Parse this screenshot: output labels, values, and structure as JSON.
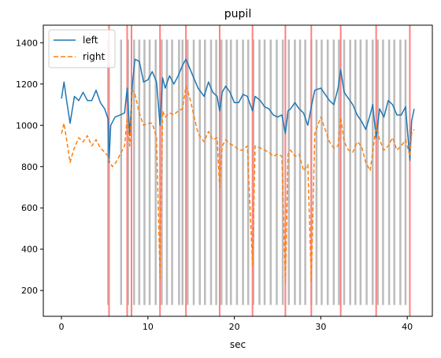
{
  "chart_data": {
    "type": "line",
    "title": "pupil",
    "xlabel": "sec",
    "ylabel": "",
    "xlim": [
      -2.1,
      42.9
    ],
    "ylim": [
      75,
      1485
    ],
    "xticks": [
      0,
      10,
      20,
      30,
      40
    ],
    "yticks": [
      200,
      400,
      600,
      800,
      1000,
      1200,
      1400
    ],
    "legend_position": "top-left",
    "blink_markers": {
      "color": "#bbbbbb",
      "y_range": [
        130,
        1415
      ],
      "x": [
        5.4,
        6.9,
        7.7,
        8.4,
        9.0,
        9.6,
        10.2,
        10.9,
        11.6,
        12.2,
        12.8,
        13.6,
        14.0,
        14.6,
        15.3,
        16.0,
        16.6,
        17.3,
        17.9,
        18.5,
        19.1,
        19.6,
        20.3,
        21.0,
        21.6,
        22.2,
        22.9,
        23.5,
        24.2,
        24.9,
        25.6,
        26.3,
        27.0,
        27.6,
        28.2,
        28.9,
        29.5,
        30.1,
        30.8,
        31.5,
        32.1,
        32.7,
        33.4,
        34.0,
        34.6,
        35.3,
        36.0,
        36.6,
        37.2,
        37.9,
        38.5,
        39.2,
        39.8
      ]
    },
    "event_lines": {
      "color": "#ff8080",
      "x": [
        5.5,
        7.6,
        8.1,
        11.4,
        14.4,
        18.3,
        22.1,
        25.9,
        28.9,
        32.3,
        36.4,
        40.3
      ]
    },
    "series": [
      {
        "name": "left",
        "color": "#1f77b4",
        "style": "solid",
        "x": [
          0.0,
          0.3,
          0.6,
          1.0,
          1.5,
          2.0,
          2.5,
          3.0,
          3.5,
          4.0,
          4.5,
          5.0,
          5.4,
          5.5,
          5.7,
          6.2,
          6.8,
          7.3,
          7.6,
          7.9,
          8.2,
          8.5,
          9.0,
          9.5,
          10.0,
          10.5,
          11.0,
          11.4,
          11.7,
          12.0,
          12.5,
          13.0,
          13.5,
          14.0,
          14.4,
          14.8,
          15.3,
          15.8,
          16.5,
          17.0,
          17.5,
          18.0,
          18.3,
          18.6,
          19.0,
          19.5,
          20.0,
          20.5,
          21.0,
          21.5,
          22.1,
          22.4,
          23.0,
          23.5,
          24.0,
          24.5,
          25.0,
          25.5,
          25.9,
          26.2,
          26.5,
          27.0,
          27.5,
          28.0,
          28.5,
          28.9,
          29.3,
          30.0,
          30.5,
          31.0,
          31.5,
          32.0,
          32.3,
          32.7,
          33.2,
          33.7,
          34.2,
          34.7,
          35.2,
          35.7,
          36.0,
          36.4,
          36.8,
          37.3,
          37.8,
          38.3,
          38.8,
          39.3,
          39.8,
          40.3,
          40.5,
          40.8
        ],
        "values": [
          1130,
          1210,
          1120,
          1010,
          1140,
          1120,
          1160,
          1120,
          1120,
          1170,
          1110,
          1080,
          1030,
          820,
          1000,
          1040,
          1050,
          1060,
          1180,
          950,
          1200,
          1320,
          1310,
          1210,
          1220,
          1260,
          1210,
          1000,
          1230,
          1180,
          1240,
          1200,
          1240,
          1290,
          1320,
          1280,
          1230,
          1180,
          1140,
          1210,
          1160,
          1140,
          1070,
          1160,
          1190,
          1160,
          1110,
          1110,
          1150,
          1140,
          1070,
          1140,
          1120,
          1090,
          1080,
          1050,
          1040,
          1050,
          960,
          1070,
          1080,
          1110,
          1080,
          1060,
          1000,
          1090,
          1170,
          1180,
          1150,
          1120,
          1100,
          1180,
          1270,
          1160,
          1130,
          1100,
          1050,
          1020,
          980,
          1050,
          1100,
          940,
          1080,
          1040,
          1120,
          1100,
          1050,
          1050,
          1090,
          830,
          1020,
          1080
        ]
      },
      {
        "name": "right",
        "color": "#ff7f0e",
        "style": "dashed",
        "x": [
          0.0,
          0.3,
          0.6,
          1.0,
          1.4,
          2.0,
          2.5,
          3.0,
          3.5,
          4.0,
          4.5,
          5.0,
          5.4,
          5.6,
          5.9,
          6.3,
          6.8,
          7.3,
          7.6,
          7.9,
          8.2,
          8.5,
          9.0,
          9.5,
          10.0,
          10.5,
          11.0,
          11.4,
          11.7,
          12.0,
          12.5,
          13.0,
          13.5,
          14.0,
          14.4,
          14.8,
          15.3,
          15.8,
          16.5,
          17.0,
          17.5,
          18.0,
          18.3,
          18.6,
          19.0,
          19.5,
          20.0,
          20.5,
          21.0,
          21.5,
          22.1,
          22.4,
          23.0,
          23.5,
          24.0,
          24.5,
          25.0,
          25.5,
          25.9,
          26.2,
          26.5,
          27.0,
          27.5,
          28.0,
          28.5,
          28.9,
          29.3,
          30.0,
          30.5,
          31.0,
          31.5,
          32.0,
          32.3,
          32.7,
          33.2,
          33.7,
          34.2,
          34.7,
          35.2,
          35.7,
          36.0,
          36.4,
          36.8,
          37.3,
          37.8,
          38.3,
          38.8,
          39.3,
          39.8,
          40.3,
          40.5,
          40.8
        ],
        "values": [
          960,
          1010,
          930,
          820,
          880,
          940,
          920,
          950,
          900,
          930,
          890,
          870,
          850,
          820,
          800,
          820,
          860,
          900,
          1040,
          900,
          1170,
          1150,
          1060,
          1000,
          1010,
          1010,
          940,
          260,
          1070,
          1040,
          1060,
          1050,
          1070,
          1080,
          1190,
          1140,
          1050,
          960,
          920,
          970,
          930,
          940,
          700,
          900,
          930,
          910,
          900,
          880,
          880,
          900,
          320,
          900,
          890,
          880,
          870,
          850,
          860,
          850,
          230,
          860,
          880,
          850,
          860,
          780,
          810,
          240,
          960,
          1040,
          980,
          920,
          890,
          900,
          1040,
          920,
          880,
          870,
          920,
          900,
          820,
          780,
          870,
          1000,
          930,
          880,
          900,
          940,
          880,
          900,
          930,
          850,
          960,
          980
        ]
      }
    ]
  }
}
